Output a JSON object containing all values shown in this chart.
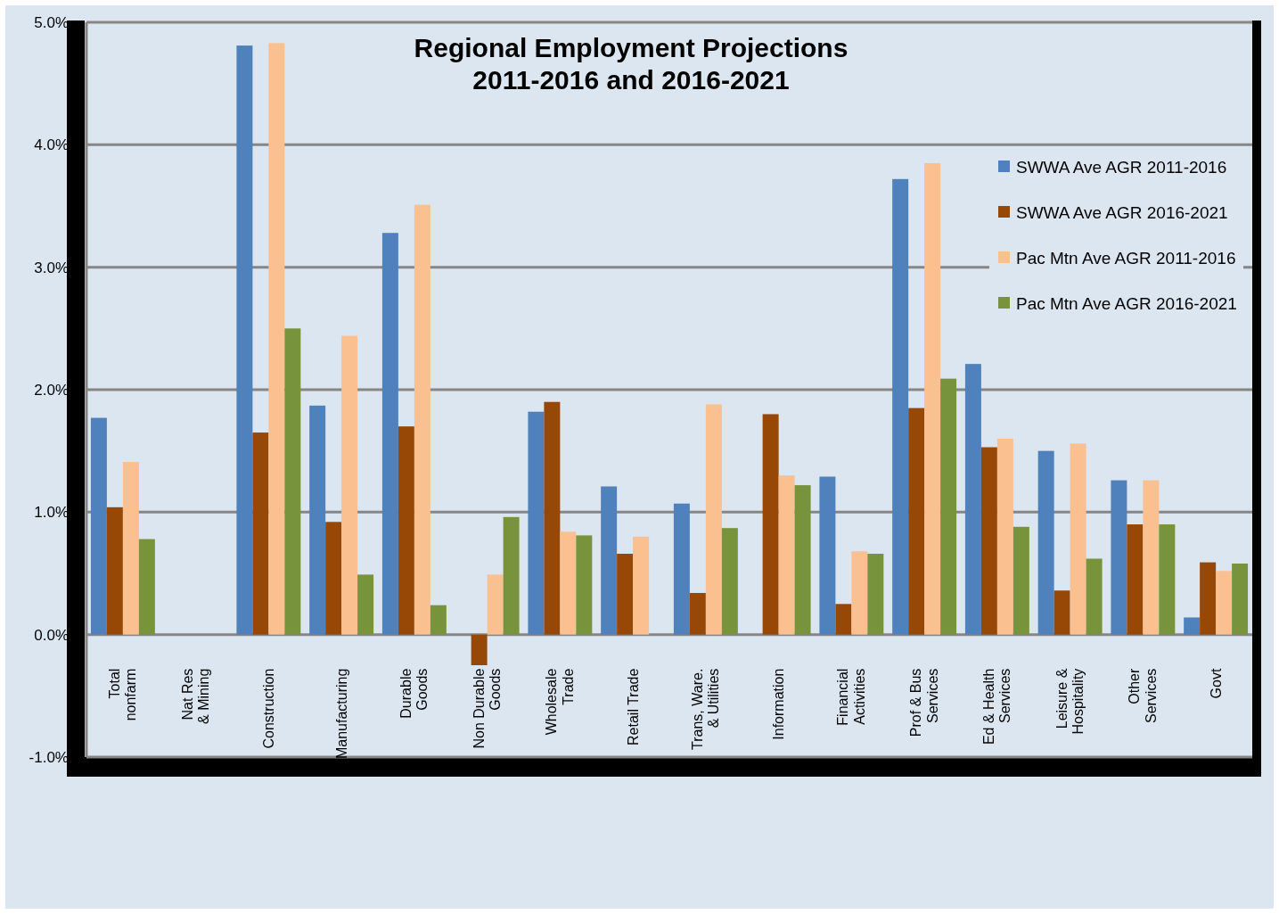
{
  "chart_data": {
    "type": "bar",
    "title": "Regional Employment Projections\n2011-2016 and 2016-2021",
    "categories": [
      "Total nonfarm",
      "Nat Res & Mining",
      "Construction",
      "Manufacturing",
      "Durable Goods",
      "Non Durable Goods",
      "Wholesale Trade",
      "Retail Trade",
      "Trans, Ware. & Utilities",
      "Information",
      "Financial Activities",
      "Prof & Bus Services",
      "Ed & Health Services",
      "Leisure & Hospitality",
      "Other Services",
      "Govt"
    ],
    "series": [
      {
        "name": "SWWA Ave AGR 2011-2016",
        "color": "#4f81bd",
        "values": [
          1.77,
          null,
          4.81,
          1.87,
          3.28,
          null,
          1.82,
          1.21,
          1.07,
          null,
          1.29,
          3.72,
          2.21,
          1.5,
          1.26,
          0.14
        ]
      },
      {
        "name": "SWWA Ave AGR 2016-2021",
        "color": "#974706",
        "values": [
          1.04,
          null,
          1.65,
          0.92,
          1.7,
          -0.25,
          1.9,
          0.66,
          0.34,
          1.8,
          0.25,
          1.85,
          1.53,
          0.36,
          0.9,
          0.59
        ]
      },
      {
        "name": "Pac Mtn Ave AGR 2011-2016",
        "color": "#fac090",
        "values": [
          1.41,
          null,
          4.83,
          2.44,
          3.51,
          0.49,
          0.84,
          0.8,
          1.88,
          1.3,
          0.68,
          3.85,
          1.6,
          1.56,
          1.26,
          0.52
        ]
      },
      {
        "name": "Pac Mtn Ave AGR 2016-2021",
        "color": "#77933c",
        "values": [
          0.78,
          null,
          2.5,
          0.49,
          0.24,
          0.96,
          0.81,
          null,
          0.87,
          1.22,
          0.66,
          2.09,
          0.88,
          0.62,
          0.9,
          0.58
        ]
      }
    ],
    "ylim": [
      -1,
      5
    ],
    "yticks": [
      {
        "value": -1,
        "label": "-1.0%"
      },
      {
        "value": 0,
        "label": "0.0%"
      },
      {
        "value": 1,
        "label": "1.0%"
      },
      {
        "value": 2,
        "label": "2.0%"
      },
      {
        "value": 3,
        "label": "3.0%"
      },
      {
        "value": 4,
        "label": "4.0%"
      },
      {
        "value": 5,
        "label": "5.0%"
      }
    ],
    "grid": "y",
    "legend": "top right"
  }
}
